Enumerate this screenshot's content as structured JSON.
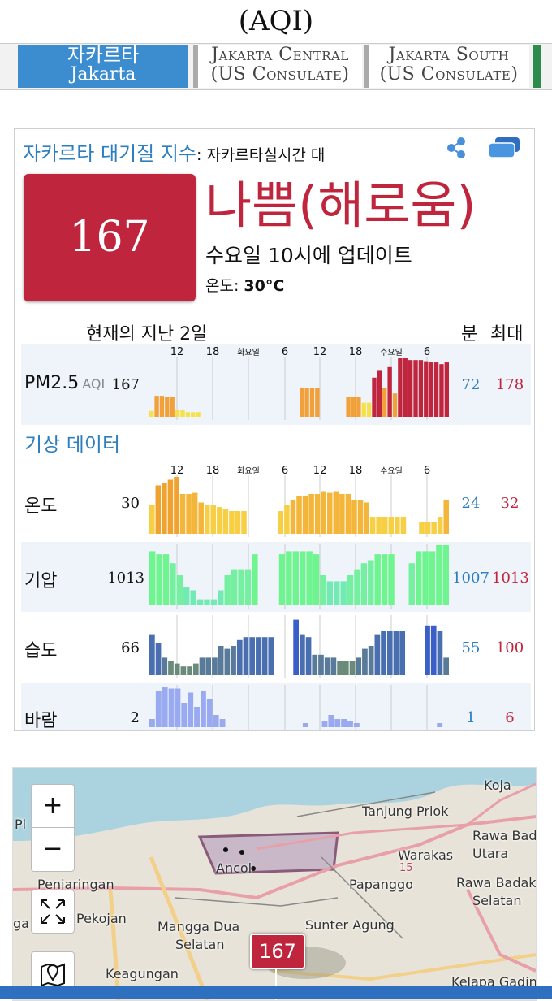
{
  "header": {
    "title": "(AQI)"
  },
  "tabs": [
    {
      "line1": "자카르타",
      "line2": "Jakarta"
    },
    {
      "line1": "Jakarta Central",
      "line2": "(US Consulate)"
    },
    {
      "line1": "Jakarta South",
      "line2": "(US Consulate)"
    }
  ],
  "card": {
    "title_city": "자카르타",
    "title_rest": " 대기질 지수",
    "title_sub": ": 자카르타실시간 대",
    "aqi": "167",
    "status": "나쁨(해로움)",
    "updated": "수요일 10시에 업데이트",
    "temp_label": "온도: ",
    "temp_value": "30°C",
    "history_label": "현재의 지난 2일",
    "min_label": "분",
    "max_label": "최대",
    "weather_title": "기상 데이터"
  },
  "time_ticks": [
    "12",
    "18",
    "화요일",
    "6",
    "12",
    "18",
    "수요일",
    "6"
  ],
  "rows": [
    {
      "key": "pm25",
      "label": "PM2.5",
      "sub": "AQI",
      "value": "167",
      "min": "72",
      "max": "178",
      "bars": [
        0.1,
        0.36,
        0.36,
        0.34,
        0.34,
        0.12,
        0.12,
        0.08,
        0.08,
        0.08,
        0,
        0,
        0,
        0,
        0,
        0,
        0,
        0,
        0,
        0,
        0,
        0,
        0,
        0,
        0,
        0,
        0,
        0,
        0,
        0.5,
        0.5,
        0.5,
        0.5,
        0,
        0,
        0,
        0,
        0,
        0.34,
        0.34,
        0.34,
        0.24,
        0.24,
        0.67,
        0.8,
        0.5,
        0.85,
        0.4,
        1,
        1,
        0.97,
        0.97,
        0.97,
        0.95,
        0.93,
        0.93,
        0.9,
        0.93
      ],
      "colors": [
        "#f7e14a",
        "#f2a03a",
        "#f2a03a",
        "#f2a03a",
        "#f2a03a",
        "#f7e14a",
        "#f7e14a",
        "#f7e14a",
        "#f7e14a",
        "#f7e14a",
        "",
        "",
        "",
        "",
        "",
        "",
        "",
        "",
        "",
        "",
        "",
        "",
        "",
        "",
        "",
        "",
        "",
        "",
        "",
        "#f2a03a",
        "#f2a03a",
        "#f2a03a",
        "#f2a03a",
        "",
        "",
        "",
        "",
        "",
        "#f2a03a",
        "#f2a03a",
        "#f2a03a",
        "#f7e14a",
        "#f7e14a",
        "#c0253e",
        "#c0253e",
        "#f2a03a",
        "#c0253e",
        "#f2a03a",
        "#c0253e",
        "#c0253e",
        "#c0253e",
        "#c0253e",
        "#c0253e",
        "#c0253e",
        "#c0253e",
        "#c0253e",
        "#c0253e",
        "#c0253e"
      ]
    },
    {
      "key": "temp",
      "label": "온도",
      "value": "30",
      "min": "24",
      "max": "32",
      "bars": [
        0.5,
        0.85,
        0.9,
        0.95,
        1,
        0.7,
        0.7,
        0.72,
        0.55,
        0.5,
        0.5,
        0.47,
        0.44,
        0.4,
        0.4,
        0.4,
        0,
        0,
        0,
        0,
        0,
        0.4,
        0.5,
        0.6,
        0.67,
        0.67,
        0.7,
        0.7,
        0.75,
        0.72,
        0.75,
        0.7,
        0.7,
        0.6,
        0.6,
        0.55,
        0.3,
        0.3,
        0.3,
        0.3,
        0.3,
        0.3,
        0,
        0,
        0.2,
        0.2,
        0.2,
        0.3,
        0.6
      ],
      "palette": "temp"
    },
    {
      "key": "pressure",
      "label": "기압",
      "value": "1013",
      "min": "1007",
      "max": "1013",
      "bars": [
        0.9,
        0.85,
        0.85,
        0.7,
        0.5,
        0.3,
        0.25,
        0.1,
        0.1,
        0.1,
        0.25,
        0.5,
        0.6,
        0.6,
        0.6,
        0.85,
        0,
        0,
        0,
        0.85,
        0.9,
        0.9,
        0.9,
        0.9,
        0.85,
        0.5,
        0.4,
        0.4,
        0.4,
        0.5,
        0.6,
        0.7,
        0.75,
        0.85,
        0.85,
        0.85,
        0,
        0,
        0.7,
        0.9,
        0.9,
        0.9,
        1,
        1
      ],
      "palette": "pressure"
    },
    {
      "key": "humidity",
      "label": "습도",
      "value": "66",
      "min": "55",
      "max": "100",
      "bars": [
        0.7,
        0.55,
        0.3,
        0.25,
        0.2,
        0.15,
        0.15,
        0.2,
        0.3,
        0.3,
        0.3,
        0.5,
        0.45,
        0.5,
        0.6,
        0.65,
        0.65,
        0.65,
        0.65,
        0.65,
        0,
        0,
        0,
        0.95,
        0.7,
        0.65,
        0.35,
        0.35,
        0.3,
        0.3,
        0.25,
        0.25,
        0.25,
        0.3,
        0.45,
        0.5,
        0.7,
        0.75,
        0.75,
        0.75,
        0.75,
        0,
        0,
        0,
        0.85,
        0.85,
        0.75,
        0.3
      ],
      "palette": "humidity"
    },
    {
      "key": "wind",
      "label": "바람",
      "value": "2",
      "min": "1",
      "max": "6",
      "bars": [
        0.2,
        0.9,
        1,
        0.95,
        0.95,
        0.6,
        0.85,
        0.5,
        0.9,
        0.7,
        0.3,
        0.2,
        0,
        0,
        0,
        0,
        0,
        0,
        0,
        0,
        0,
        0,
        0,
        0,
        0.1,
        0,
        0,
        0.15,
        0.3,
        0.2,
        0.2,
        0.15,
        0.1,
        0,
        0,
        0,
        0,
        0,
        0,
        0,
        0,
        0,
        0,
        0,
        0,
        0.1,
        0
      ],
      "palette": "wind"
    }
  ],
  "map": {
    "zoom_in": "+",
    "zoom_out": "−",
    "marker": "167",
    "labels": [
      "Koja",
      "Tanjung Priok",
      "Rawa Badak",
      "Utara",
      "Warakas",
      "Ancol",
      "Papanggo",
      "Rawa Badak",
      "Selatan",
      "Penjaringan",
      "Pekojan",
      "Mangga Dua",
      "Selatan",
      "Sunter Agung",
      "Keagungan",
      "Kelapa Gading",
      "15",
      "Pl",
      "ga"
    ]
  }
}
